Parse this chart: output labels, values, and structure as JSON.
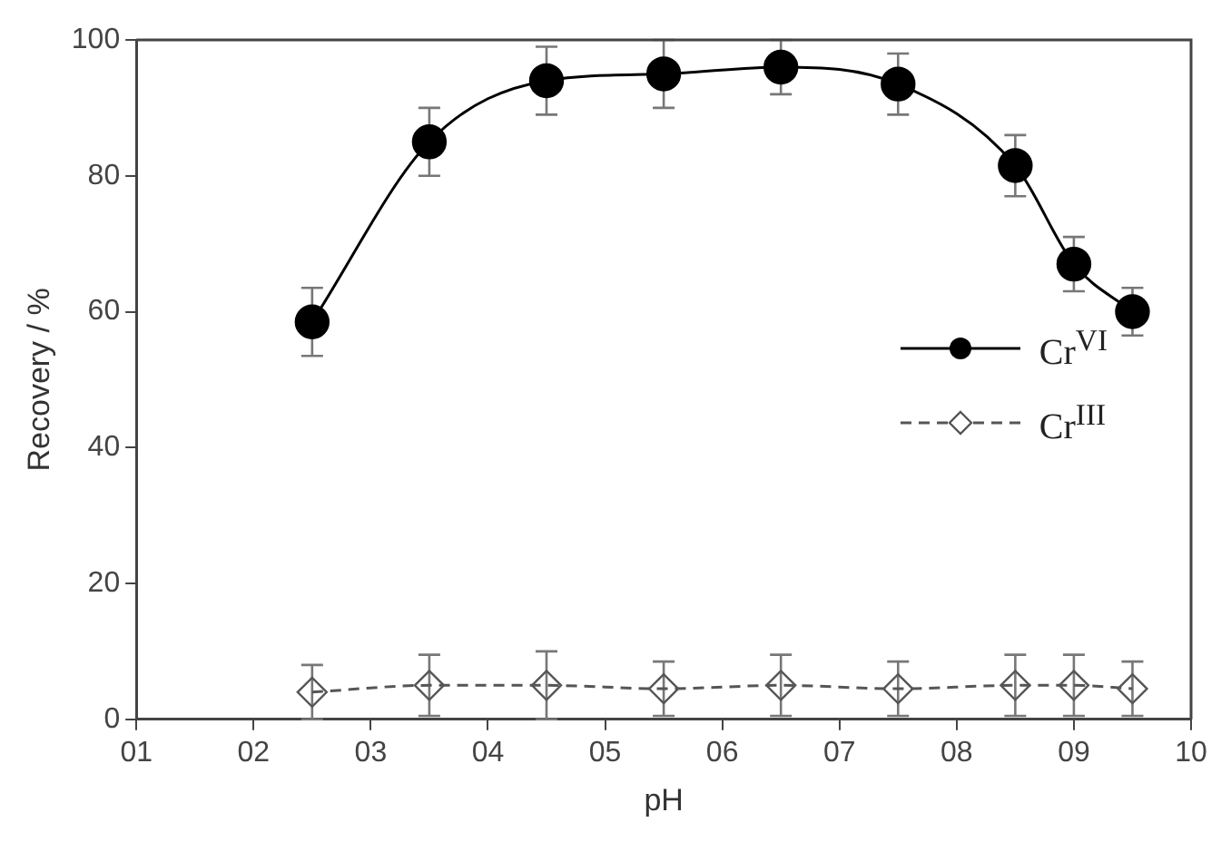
{
  "chart_data": {
    "type": "line",
    "xlabel": "pH",
    "ylabel": "Recovery / %",
    "x": [
      2.5,
      3.5,
      4.5,
      5.5,
      6.5,
      7.5,
      8.5,
      9,
      9.5
    ],
    "series": [
      {
        "name": "Cr$^{VI}$",
        "color": "#000000",
        "marker": "circle",
        "line_style": "solid",
        "values": [
          58.5,
          85,
          94,
          95,
          96,
          93.5,
          81.5,
          67,
          60
        ],
        "errors": [
          5,
          5,
          5,
          5,
          4,
          4.5,
          4.5,
          4,
          3.5
        ]
      },
      {
        "name": "Cr$^{III}$",
        "color": "#555555",
        "marker": "diamond",
        "line_style": "dashed",
        "values": [
          4,
          5,
          5,
          4.5,
          5,
          4.5,
          5,
          5,
          4.5
        ],
        "errors": [
          4,
          4.5,
          5,
          4,
          4.5,
          4,
          4.5,
          4.5,
          4
        ]
      }
    ],
    "xlim": [
      1,
      10
    ],
    "xticks": [
      {
        "value": 1,
        "label": "01"
      },
      {
        "value": 2,
        "label": "02"
      },
      {
        "value": 3,
        "label": "03"
      },
      {
        "value": 4,
        "label": "04"
      },
      {
        "value": 5,
        "label": "05"
      },
      {
        "value": 6,
        "label": "06"
      },
      {
        "value": 7,
        "label": "07"
      },
      {
        "value": 8,
        "label": "08"
      },
      {
        "value": 9,
        "label": "09"
      },
      10
    ],
    "ylim": [
      0,
      100
    ],
    "yticks": [
      0,
      20,
      40,
      60,
      80,
      100
    ],
    "grid": false,
    "legend": "right"
  }
}
